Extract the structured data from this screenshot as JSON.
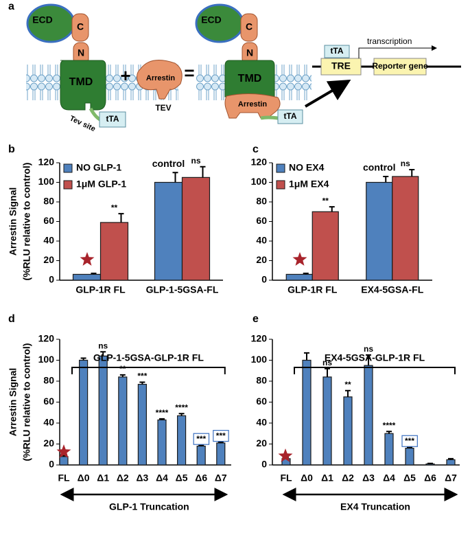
{
  "diagram": {
    "panel": "a",
    "left": {
      "ecd": "ECD",
      "c": "C",
      "n": "N",
      "tmd": "TMD",
      "tev_site": "Tev site",
      "tta": "tTA"
    },
    "plus": "+",
    "arrestin": "Arrestin",
    "tev": "TEV",
    "equals": "=",
    "right": {
      "ecd": "ECD",
      "c": "C",
      "n": "N",
      "tmd": "TMD",
      "arrestin": "Arrestin",
      "tta": "tTA"
    },
    "reporter": {
      "tta": "tTA",
      "tre": "TRE",
      "gene": "Reporter gene",
      "transcription": "transcription"
    }
  },
  "chart_data": [
    {
      "type": "bar",
      "panel": "b",
      "ylabel": [
        "Arrestin Signal",
        "(%RLU relative to control)"
      ],
      "categories": [
        "GLP-1R FL",
        "GLP-1-5GSA-FL"
      ],
      "series": [
        {
          "name": "NO GLP-1",
          "color": "#4f81bd",
          "values": [
            6,
            100
          ],
          "errors": [
            1,
            10
          ],
          "annotations": [
            null,
            null
          ]
        },
        {
          "name": "1μM GLP-1",
          "color": "#c0504d",
          "values": [
            59,
            105
          ],
          "errors": [
            9,
            11
          ],
          "annotations": [
            "**",
            "ns"
          ]
        }
      ],
      "group_labels": [
        null,
        "control"
      ],
      "ylim": [
        0,
        120
      ],
      "yticks": [
        0,
        20,
        40,
        60,
        80,
        100,
        120
      ],
      "legend": "upper left"
    },
    {
      "type": "bar",
      "panel": "c",
      "categories": [
        "GLP-1R FL",
        "EX4-5GSA-FL"
      ],
      "series": [
        {
          "name": "NO EX4",
          "color": "#4f81bd",
          "values": [
            6,
            100
          ],
          "errors": [
            1,
            6
          ],
          "annotations": [
            null,
            null
          ]
        },
        {
          "name": "1μM EX4",
          "color": "#c0504d",
          "values": [
            70,
            106
          ],
          "errors": [
            5,
            7
          ],
          "annotations": [
            "**",
            "ns"
          ]
        }
      ],
      "group_labels": [
        null,
        "control"
      ],
      "ylim": [
        0,
        120
      ],
      "yticks": [
        0,
        20,
        40,
        60,
        80,
        100,
        120
      ],
      "legend": "upper left"
    },
    {
      "type": "bar",
      "panel": "d",
      "ylabel": [
        "Arrestin Signal",
        "(%RLU relative to control)"
      ],
      "bracket_title": "GLP-1-5GSA-GLP-1R FL",
      "xlabel": "GLP-1 Truncation",
      "categories": [
        "FL",
        "Δ0",
        "Δ1",
        "Δ2",
        "Δ3",
        "Δ4",
        "Δ5",
        "Δ6",
        "Δ7"
      ],
      "values": [
        8,
        100,
        104,
        84,
        77,
        43,
        47,
        18,
        21
      ],
      "errors": [
        1,
        2,
        4,
        2,
        2,
        1,
        2,
        1,
        1
      ],
      "annotations": [
        null,
        null,
        "ns",
        "**",
        "***",
        "****",
        "****",
        "***",
        "***"
      ],
      "boxed": [
        false,
        false,
        false,
        false,
        false,
        false,
        false,
        true,
        true
      ],
      "color": "#4f81bd",
      "ylim": [
        0,
        120
      ],
      "yticks": [
        0,
        20,
        40,
        60,
        80,
        100,
        120
      ]
    },
    {
      "type": "bar",
      "panel": "e",
      "bracket_title": "EX4-5GSA-GLP-1R FL",
      "xlabel": "EX4 Truncation",
      "categories": [
        "FL",
        "Δ0",
        "Δ1",
        "Δ2",
        "Δ3",
        "Δ4",
        "Δ5",
        "Δ6",
        "Δ7"
      ],
      "values": [
        6,
        100,
        84,
        65,
        95,
        30,
        16,
        1,
        5
      ],
      "errors": [
        1,
        7,
        8,
        6,
        10,
        2,
        1,
        0.5,
        1
      ],
      "annotations": [
        null,
        null,
        "ns",
        "**",
        "ns",
        "****",
        "***",
        null,
        null
      ],
      "boxed": [
        false,
        false,
        false,
        false,
        false,
        false,
        true,
        false,
        false
      ],
      "color": "#4f81bd",
      "ylim": [
        0,
        120
      ],
      "yticks": [
        0,
        20,
        40,
        60,
        80,
        100,
        120
      ]
    }
  ]
}
